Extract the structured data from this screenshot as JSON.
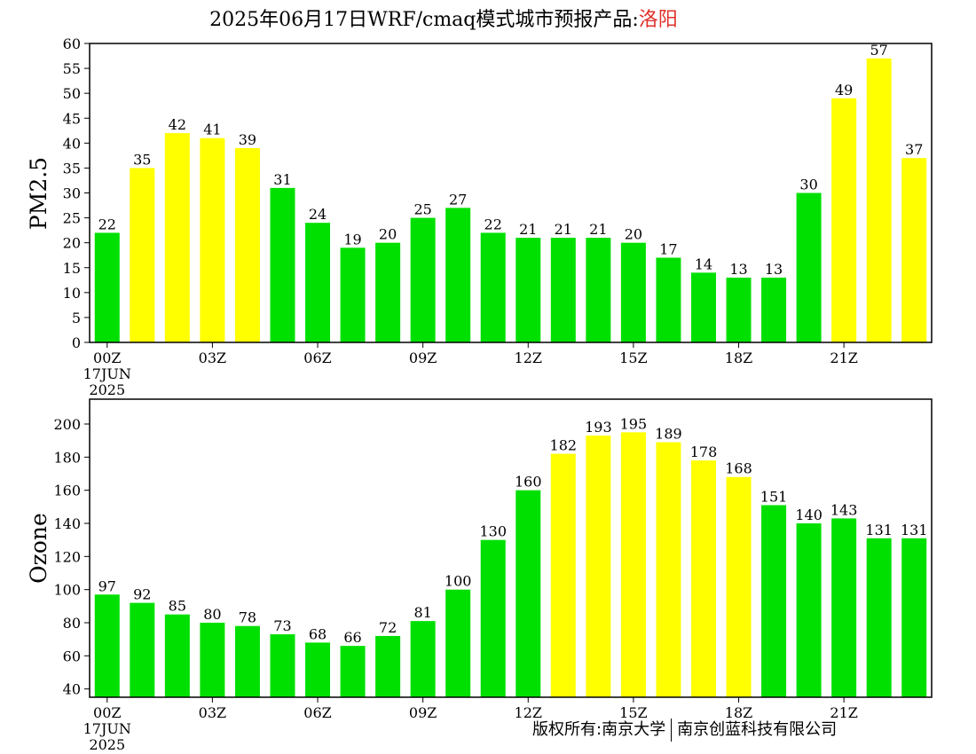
{
  "title": {
    "prefix": "2025年06月17日WRF/cmaq模式城市预报产品:",
    "city": "洛阳",
    "city_color": "#e0302a"
  },
  "footer": {
    "left": "版权所有:南京大学",
    "right": "南京创蓝科技有限公司"
  },
  "colors": {
    "green": "#00e000",
    "yellow": "#ffff00",
    "axis": "#000000"
  },
  "chart_data": [
    {
      "type": "bar",
      "ylabel": "PM2.5",
      "ylim": [
        0,
        60
      ],
      "yticks": [
        0,
        5,
        10,
        15,
        20,
        25,
        30,
        35,
        40,
        45,
        50,
        55,
        60
      ],
      "x_tick_labels": [
        "00Z",
        "03Z",
        "06Z",
        "09Z",
        "12Z",
        "15Z",
        "18Z",
        "21Z"
      ],
      "date_label": [
        "17JUN",
        "2025"
      ],
      "values": [
        22,
        35,
        42,
        41,
        39,
        31,
        24,
        19,
        20,
        25,
        27,
        22,
        21,
        21,
        21,
        20,
        17,
        14,
        13,
        13,
        30,
        49,
        57,
        37
      ],
      "colors": [
        "green",
        "yellow",
        "yellow",
        "yellow",
        "yellow",
        "green",
        "green",
        "green",
        "green",
        "green",
        "green",
        "green",
        "green",
        "green",
        "green",
        "green",
        "green",
        "green",
        "green",
        "green",
        "green",
        "yellow",
        "yellow",
        "yellow"
      ]
    },
    {
      "type": "bar",
      "ylabel": "Ozone",
      "ylim": [
        35,
        215
      ],
      "yticks": [
        40,
        60,
        80,
        100,
        120,
        140,
        160,
        180,
        200
      ],
      "x_tick_labels": [
        "00Z",
        "03Z",
        "06Z",
        "09Z",
        "12Z",
        "15Z",
        "18Z",
        "21Z"
      ],
      "date_label": [
        "17JUN",
        "2025"
      ],
      "values": [
        97,
        92,
        85,
        80,
        78,
        73,
        68,
        66,
        72,
        81,
        100,
        130,
        160,
        182,
        193,
        195,
        189,
        178,
        168,
        151,
        140,
        143,
        131,
        131
      ],
      "colors": [
        "green",
        "green",
        "green",
        "green",
        "green",
        "green",
        "green",
        "green",
        "green",
        "green",
        "green",
        "green",
        "green",
        "yellow",
        "yellow",
        "yellow",
        "yellow",
        "yellow",
        "yellow",
        "green",
        "green",
        "green",
        "green",
        "green"
      ]
    }
  ]
}
